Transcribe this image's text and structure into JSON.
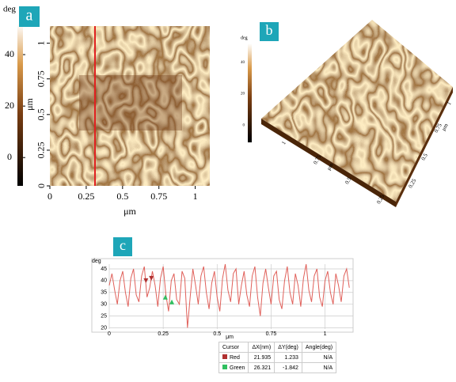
{
  "panel_a": {
    "label": "a",
    "colorbar_unit": "deg",
    "clim": [
      -11,
      52
    ],
    "colorbar_ticks": [
      40,
      20,
      0
    ],
    "xlim": [
      0,
      1.1
    ],
    "ylim": [
      0,
      1.12
    ],
    "xticks": [
      0,
      0.25,
      0.5,
      0.75,
      1
    ],
    "yticks": [
      0,
      0.25,
      0.5,
      0.75,
      1
    ],
    "xlabel": "μm",
    "ylabel": "μm"
  },
  "panel_b": {
    "label": "b",
    "colorbar_unit": "deg",
    "clim": [
      -11,
      52
    ],
    "colorbar_ticks": [
      40,
      20,
      0
    ],
    "left_axis_labels": [
      "1",
      "0.75",
      "0.5",
      "0.25"
    ],
    "left_axis_unit": "μm",
    "right_axis_labels": [
      "0.25",
      "0.5",
      "0.75",
      "1"
    ],
    "right_axis_unit": "μm"
  },
  "chart_data": {
    "type": "line",
    "label": "c",
    "ylabel": "deg",
    "xlabel": "μm",
    "xlim": [
      0,
      1.13
    ],
    "ylim": [
      19.5,
      47
    ],
    "xticks": [
      0,
      0.25,
      0.5,
      0.75,
      1
    ],
    "yticks": [
      20,
      25,
      30,
      35,
      40,
      45
    ],
    "grid": true,
    "x": [
      0,
      0.0125,
      0.025,
      0.0375,
      0.05,
      0.0625,
      0.075,
      0.0875,
      0.1,
      0.1125,
      0.125,
      0.1375,
      0.15,
      0.1625,
      0.175,
      0.1875,
      0.2,
      0.2125,
      0.225,
      0.2375,
      0.25,
      0.2625,
      0.275,
      0.2875,
      0.3,
      0.3125,
      0.325,
      0.3375,
      0.35,
      0.3625,
      0.375,
      0.3875,
      0.4,
      0.4125,
      0.425,
      0.4375,
      0.45,
      0.4625,
      0.475,
      0.4875,
      0.5,
      0.5125,
      0.525,
      0.5375,
      0.55,
      0.5625,
      0.575,
      0.5875,
      0.6,
      0.6125,
      0.625,
      0.6375,
      0.65,
      0.6625,
      0.675,
      0.6875,
      0.7,
      0.7125,
      0.725,
      0.7375,
      0.75,
      0.7625,
      0.775,
      0.7875,
      0.8,
      0.8125,
      0.825,
      0.8375,
      0.85,
      0.8625,
      0.875,
      0.8875,
      0.9,
      0.9125,
      0.925,
      0.9375,
      0.95,
      0.9625,
      0.975,
      0.9875,
      1,
      1.0125,
      1.025,
      1.0375,
      1.05,
      1.0625,
      1.075,
      1.0875,
      1.1,
      1.1125
    ],
    "series": [
      {
        "color": "#e0605a",
        "values": [
          38,
          43,
          36,
          30,
          40,
          44,
          35,
          29,
          41,
          45,
          34,
          31,
          42,
          46,
          33,
          37,
          44,
          38,
          29,
          41,
          46,
          34,
          27,
          40,
          43,
          32,
          30,
          44,
          41,
          20,
          33,
          45,
          38,
          30,
          42,
          46,
          35,
          28,
          39,
          44,
          33,
          27,
          41,
          47,
          36,
          31,
          43,
          45,
          30,
          38,
          44,
          34,
          29,
          42,
          46,
          33,
          25,
          39,
          45,
          37,
          30,
          42,
          44,
          32,
          28,
          40,
          46,
          35,
          30,
          43,
          38,
          29,
          41,
          47,
          36,
          31,
          42,
          45,
          33,
          29,
          40,
          44,
          35,
          30,
          43,
          38,
          31,
          42,
          45,
          37
        ]
      }
    ],
    "cursors": [
      {
        "color": "#b03030",
        "x": [
          0.17,
          0.195
        ],
        "y": [
          40,
          41
        ]
      },
      {
        "color": "#2fbf5f",
        "x": [
          0.26,
          0.29
        ],
        "y": [
          33,
          31
        ]
      }
    ]
  },
  "table": {
    "header": [
      "Cursor",
      "ΔX(nm)",
      "ΔY(deg)",
      "Angle(deg)"
    ],
    "rows": [
      [
        "Red",
        "21.935",
        "1.233",
        "N/A"
      ],
      [
        "Green",
        "26.321",
        "-1.842",
        "N/A"
      ]
    ]
  }
}
